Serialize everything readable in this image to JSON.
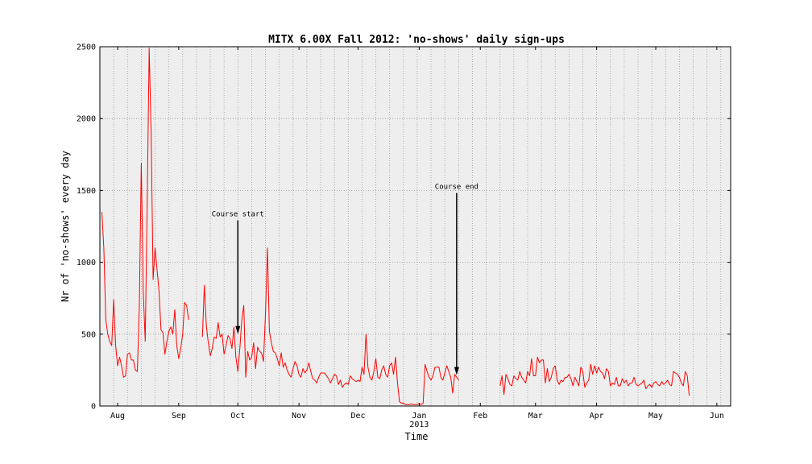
{
  "chart_data": {
    "type": "line",
    "title": "MITX 6.00X Fall 2012: 'no-shows' daily sign-ups",
    "xlabel": "Time",
    "ylabel": "Nr of 'no-shows' every day",
    "ylim": [
      0,
      2500
    ],
    "yticks": [
      0,
      500,
      1000,
      1500,
      2000,
      2500
    ],
    "xlim": [
      "2012-07-23",
      "2013-06-08"
    ],
    "xticks": [
      {
        "date": "2012-08-01",
        "label": "Aug"
      },
      {
        "date": "2012-09-01",
        "label": "Sep"
      },
      {
        "date": "2012-10-01",
        "label": "Oct"
      },
      {
        "date": "2012-11-01",
        "label": "Nov"
      },
      {
        "date": "2012-12-01",
        "label": "Dec"
      },
      {
        "date": "2013-01-01",
        "label": "Jan"
      },
      {
        "date": "2013-02-01",
        "label": "Feb"
      },
      {
        "date": "2013-03-01",
        "label": "Mar"
      },
      {
        "date": "2013-04-01",
        "label": "Apr"
      },
      {
        "date": "2013-05-01",
        "label": "May"
      },
      {
        "date": "2013-06-01",
        "label": "Jun"
      }
    ],
    "year_label": {
      "date": "2013-01-01",
      "label": "2013"
    },
    "grid": true,
    "annotations": [
      {
        "text": "Course start",
        "date": "2012-10-01",
        "y": 500,
        "text_y": 1320
      },
      {
        "text": "Course end",
        "date": "2013-01-20",
        "y": 215,
        "text_y": 1510
      }
    ],
    "series": [
      {
        "color": "#ff0000",
        "segments": [
          {
            "start": "2012-07-24",
            "values": [
              1350,
              1100,
              600,
              500,
              450,
              420,
              740,
              420,
              280,
              340,
              280,
              200,
              210,
              360,
              370,
              320,
              320,
              250,
              240,
              680,
              1690,
              800,
              450,
              1400,
              2490,
              1900,
              880,
              1100,
              950,
              800,
              530,
              510,
              360,
              450,
              520,
              550,
              500,
              670,
              420,
              330,
              400,
              500,
              720,
              700,
              600
            ]
          },
          {
            "start": "2012-09-13",
            "values": [
              480,
              840,
              560,
              440,
              350,
              400,
              480,
              470,
              580,
              480,
              500,
              360,
              420,
              490,
              470,
              400,
              550,
              340,
              240,
              400,
              600,
              700,
              200,
              380,
              320,
              340,
              440,
              260,
              410,
              380,
              370,
              310,
              640,
              1100,
              520,
              440,
              380,
              370,
              330,
              280,
              370,
              270,
              300,
              250,
              220,
              200,
              260,
              310,
              280,
              220,
              200,
              260,
              230,
              250,
              300,
              240,
              190,
              180,
              160,
              200,
              230,
              230,
              230,
              210,
              190,
              160,
              190,
              220,
              210,
              150,
              180,
              130,
              150,
              160,
              150,
              210,
              190,
              180,
              170,
              180,
              170,
              270,
              220,
              500,
              270,
              200,
              180,
              240,
              330,
              200,
              190,
              250,
              280,
              220,
              200,
              280,
              300,
              220,
              340,
              160,
              30,
              20,
              20,
              10,
              10,
              10,
              15,
              10,
              10,
              10,
              15,
              10,
              20,
              290,
              240,
              200,
              180,
              210,
              270,
              270,
              270,
              200,
              180,
              230,
              280,
              240,
              200,
              90,
              220,
              200,
              180
            ]
          },
          {
            "start": "2013-02-11",
            "values": [
              140,
              210,
              80,
              220,
              190,
              150,
              140,
              210,
              190,
              180,
              240,
              200,
              180,
              160,
              240,
              210,
              330,
              210,
              210,
              340,
              300,
              320,
              320,
              160,
              260,
              170,
              200,
              260,
              280,
              180,
              150,
              180,
              170,
              200,
              200,
              220,
              190,
              140,
              200,
              170,
              140,
              270,
              240,
              130,
              160,
              180,
              290,
              220,
              280,
              230,
              270,
              240,
              230,
              190,
              260,
              240,
              140,
              160,
              150,
              200,
              140,
              140,
              190,
              160,
              180,
              140,
              160,
              160,
              200,
              150,
              140,
              150,
              160,
              180,
              120,
              140,
              150,
              130,
              160,
              170,
              150,
              140,
              170,
              150,
              160,
              180,
              150,
              140,
              240,
              230,
              220,
              200,
              160,
              140,
              240,
              210,
              70
            ]
          }
        ]
      }
    ]
  }
}
